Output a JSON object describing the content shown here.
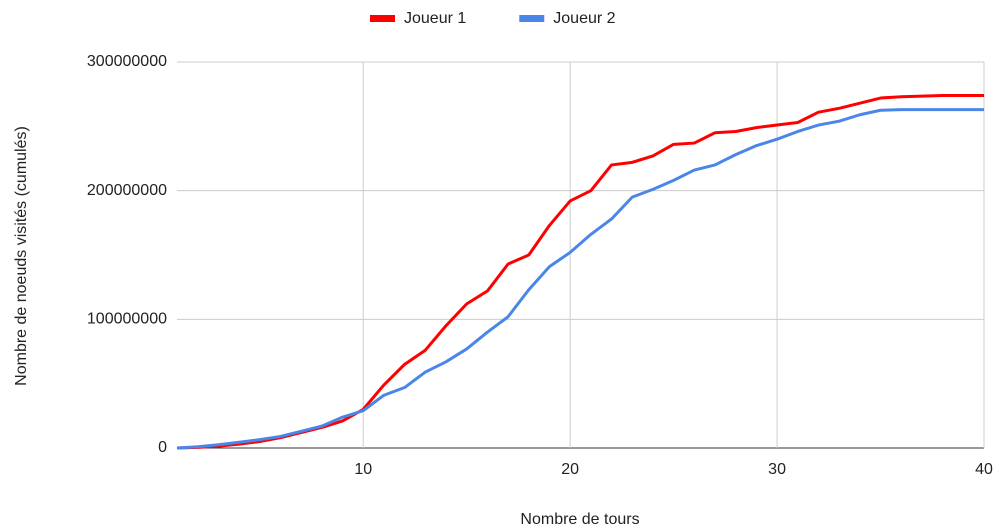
{
  "chart_data": {
    "type": "line",
    "x_label": "Nombre de tours",
    "y_label": "Nombre de noeuds visités (cumulés)",
    "x": [
      1,
      2,
      3,
      4,
      5,
      6,
      7,
      8,
      9,
      10,
      11,
      12,
      13,
      14,
      15,
      16,
      17,
      18,
      19,
      20,
      21,
      22,
      23,
      24,
      25,
      26,
      27,
      28,
      29,
      30,
      31,
      32,
      33,
      34,
      35,
      36,
      37,
      38,
      39,
      40
    ],
    "series": [
      {
        "name": "Joueur 1",
        "color": "#ff0000",
        "values": [
          0,
          500000,
          1500000,
          3000000,
          5000000,
          8000000,
          12000000,
          16000000,
          21000000,
          30000000,
          49000000,
          65000000,
          76000000,
          95000000,
          112000000,
          122000000,
          143000000,
          150000000,
          173000000,
          192000000,
          200000000,
          220000000,
          222000000,
          227000000,
          236000000,
          237000000,
          245000000,
          246000000,
          249000000,
          251000000,
          253000000,
          261000000,
          264000000,
          268000000,
          272000000,
          273000000,
          273500000,
          274000000,
          274000000,
          274000000
        ]
      },
      {
        "name": "Joueur 2",
        "color": "#4a86e8",
        "values": [
          0,
          1000000,
          2500000,
          4500000,
          6500000,
          9000000,
          13000000,
          17000000,
          24000000,
          29000000,
          41000000,
          47000000,
          59000000,
          67000000,
          77000000,
          90000000,
          102000000,
          123000000,
          141000000,
          152000000,
          166000000,
          178000000,
          195000000,
          201000000,
          208000000,
          216000000,
          220000000,
          228000000,
          235000000,
          240000000,
          246000000,
          251000000,
          254000000,
          259000000,
          262500000,
          263000000,
          263000000,
          263000000,
          263000000,
          263000000
        ]
      }
    ],
    "xlim": [
      1,
      40
    ],
    "xticks": [
      10,
      20,
      30,
      40
    ],
    "ylim": [
      0,
      300000000
    ],
    "yticks": [
      0,
      100000000,
      200000000,
      300000000
    ],
    "grid": true,
    "legend": "top"
  }
}
